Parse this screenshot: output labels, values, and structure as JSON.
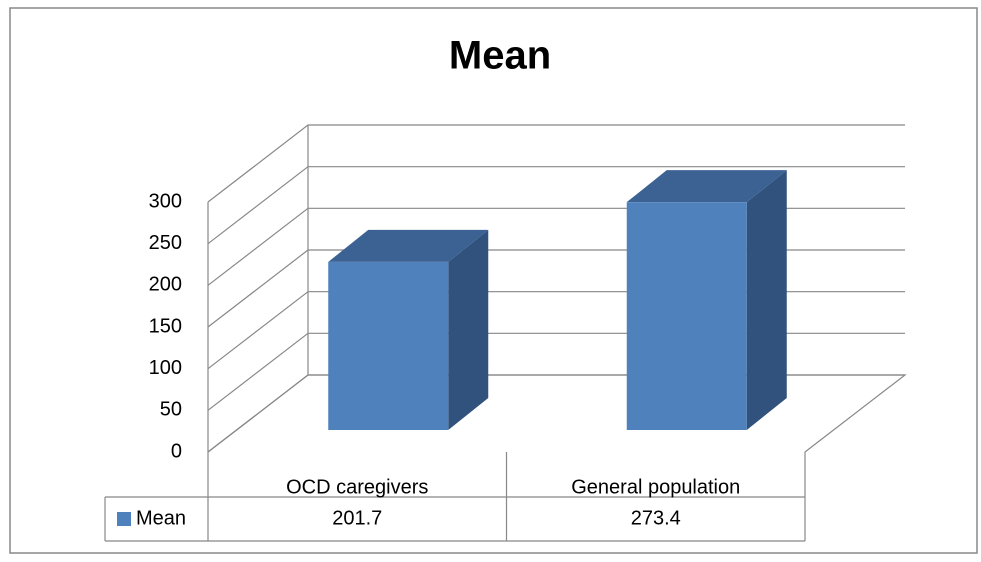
{
  "chart_data": {
    "type": "bar3d",
    "title": "Mean",
    "categories": [
      "OCD caregivers",
      "General population"
    ],
    "series": [
      {
        "name": "Mean",
        "color": "#4f81bd",
        "values": [
          201.7,
          273.4
        ]
      }
    ],
    "ylim": [
      0,
      300
    ],
    "yticks": [
      0,
      50,
      100,
      150,
      200,
      250,
      300
    ],
    "grid": true,
    "data_table": true
  }
}
